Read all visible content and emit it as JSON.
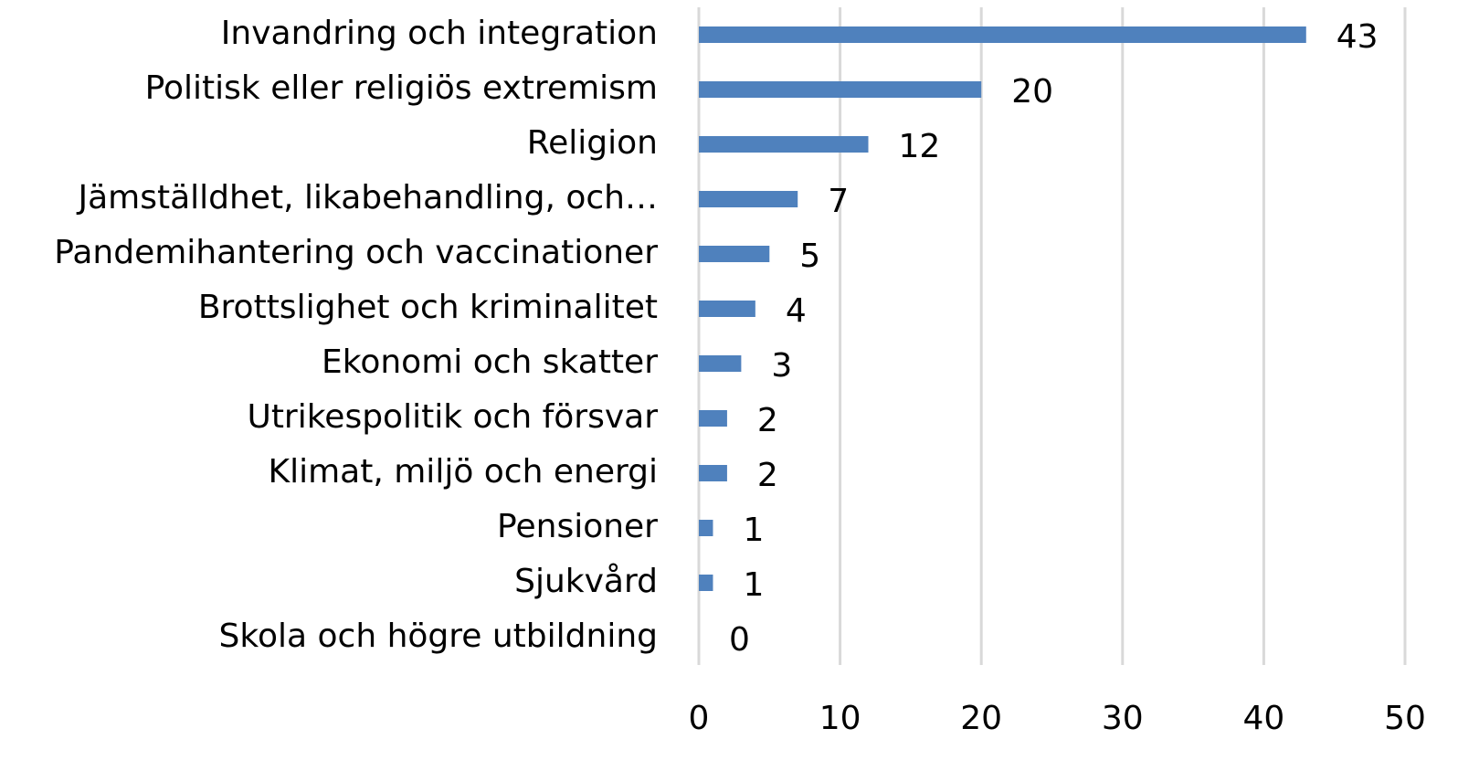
{
  "chart_data": {
    "type": "bar",
    "orientation": "horizontal",
    "categories": [
      "Invandring och integration",
      "Politisk eller religiös extremism",
      "Religion",
      "Jämställdhet, likabehandling, och…",
      "Pandemihantering och vaccinationer",
      "Brottslighet och kriminalitet",
      "Ekonomi och skatter",
      "Utrikespolitik och försvar",
      "Klimat, miljö och energi",
      "Pensioner",
      "Sjukvård",
      "Skola och högre utbildning"
    ],
    "values": [
      43,
      20,
      12,
      7,
      5,
      4,
      3,
      2,
      2,
      1,
      1,
      0
    ],
    "color": "#4f81bd",
    "xlim": [
      0,
      50
    ],
    "xticks": [
      0,
      10,
      20,
      30,
      40,
      50
    ],
    "grid": true
  }
}
